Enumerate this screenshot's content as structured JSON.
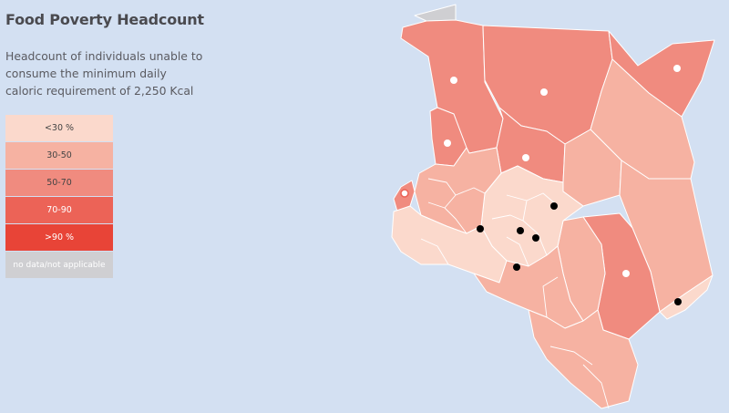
{
  "header": {
    "title": "Food Poverty Headcount",
    "subtitle": "Headcount of individuals unable to consume the minimum daily caloric requirement of 2,250 Kcal"
  },
  "legend": {
    "items": [
      {
        "label": "<30 %",
        "color": "#fbd9cc"
      },
      {
        "label": "30-50",
        "color": "#f6b2a2"
      },
      {
        "label": "50-70",
        "color": "#f08b7f"
      },
      {
        "label": "70-90",
        "color": "#ec6357"
      },
      {
        "label": ">90 %",
        "color": "#e84437"
      },
      {
        "label": "no data/not applicable",
        "color": "#cfcfd2"
      }
    ]
  },
  "colors": {
    "water": "#d3e0f2",
    "band_lt30": "#fbd9cc",
    "band_30_50": "#f6b2a2",
    "band_50_70": "#f08b7f",
    "no_data": "#cfcfd2",
    "county_border": "#ffffff",
    "marker_white": "#ffffff",
    "marker_black": "#000000"
  },
  "map": {
    "counties": [
      {
        "id": "turkana",
        "band": "50-70"
      },
      {
        "id": "west-pokot",
        "band": "50-70"
      },
      {
        "id": "marsabit",
        "band": "50-70"
      },
      {
        "id": "mandera",
        "band": "50-70"
      },
      {
        "id": "samburu",
        "band": "50-70"
      },
      {
        "id": "tana-river",
        "band": "50-70"
      },
      {
        "id": "wajir",
        "band": "30-50"
      },
      {
        "id": "garissa",
        "band": "30-50"
      },
      {
        "id": "isiolo",
        "band": "30-50"
      },
      {
        "id": "kitui",
        "band": "30-50"
      },
      {
        "id": "makueni-kajiado",
        "band": "30-50"
      },
      {
        "id": "taita-taveta-kwale",
        "band": "30-50"
      },
      {
        "id": "lamu",
        "band": "<30"
      },
      {
        "id": "central-highlands",
        "band": "<30"
      },
      {
        "id": "western-rift",
        "band": "30-50"
      },
      {
        "id": "narok",
        "band": "<30"
      },
      {
        "id": "busia",
        "band": "50-70"
      },
      {
        "id": "ilemi-triangle",
        "band": "no data"
      }
    ],
    "markers": [
      {
        "id": "lodwar",
        "color": "white"
      },
      {
        "id": "marsabit-town",
        "color": "white"
      },
      {
        "id": "mandera-town",
        "color": "white"
      },
      {
        "id": "kapenguria",
        "color": "white"
      },
      {
        "id": "maralal",
        "color": "white"
      },
      {
        "id": "busia-town",
        "color": "white"
      },
      {
        "id": "hola",
        "color": "white"
      },
      {
        "id": "nakuru",
        "color": "black"
      },
      {
        "id": "nyeri",
        "color": "black"
      },
      {
        "id": "meru",
        "color": "black"
      },
      {
        "id": "muranga",
        "color": "black"
      },
      {
        "id": "nairobi",
        "color": "black"
      },
      {
        "id": "lamu-town",
        "color": "black"
      }
    ]
  }
}
